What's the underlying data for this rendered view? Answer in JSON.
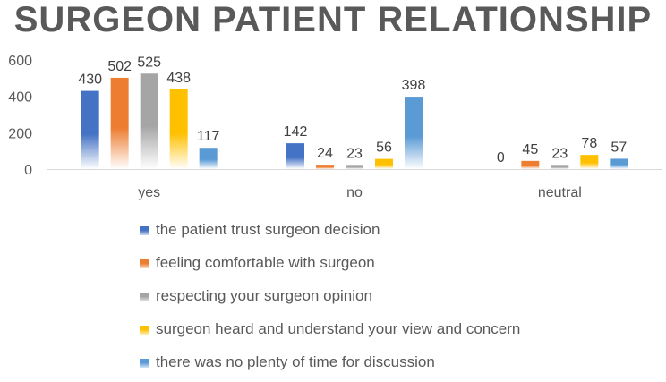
{
  "chart_data": {
    "type": "bar",
    "title": "SURGEON PATIENT RELATIONSHIP",
    "categories": [
      "yes",
      "no",
      "neutral"
    ],
    "series": [
      {
        "name": "the patient trust surgeon decision",
        "values": [
          430,
          142,
          0
        ],
        "color": "#4472C4"
      },
      {
        "name": "feeling comfortable with surgeon",
        "values": [
          502,
          24,
          45
        ],
        "color": "#ED7D31"
      },
      {
        "name": "respecting your surgeon opinion",
        "values": [
          525,
          23,
          23
        ],
        "color": "#A5A5A5"
      },
      {
        "name": "surgeon heard and understand your view and concern",
        "values": [
          438,
          56,
          78
        ],
        "color": "#FFC000"
      },
      {
        "name": "there was no plenty of time for discussion",
        "values": [
          117,
          398,
          57
        ],
        "color": "#5B9BD5"
      }
    ],
    "ylim": [
      0,
      600
    ],
    "yticks": [
      0,
      200,
      400,
      600
    ],
    "grid": false,
    "legend_position": "bottom",
    "data_labels": true,
    "bar_fill": "gradient fading to white at base"
  }
}
